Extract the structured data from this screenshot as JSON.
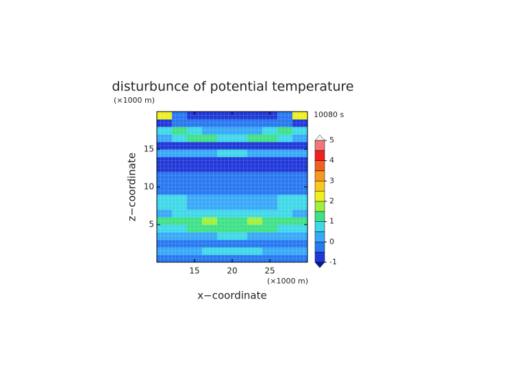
{
  "chart_data": {
    "type": "heatmap",
    "title": "disturbunce of potential temperature",
    "y_unit": "(×1000 m)",
    "x_unit": "(×1000 m)",
    "annotation": "10080 s",
    "x_label": "x−coordinate",
    "y_label": "z−coordinate",
    "xlim": [
      10,
      30
    ],
    "ylim": [
      0,
      20
    ],
    "xticks": [
      15,
      20,
      25
    ],
    "yticks": [
      5,
      10,
      15
    ],
    "x": [
      11,
      13,
      15,
      17,
      19,
      21,
      23,
      25,
      27,
      29
    ],
    "y": [
      0.5,
      1.5,
      2.5,
      3.5,
      4.5,
      5.5,
      6.5,
      7.5,
      8.5,
      9.5,
      10.5,
      11.5,
      12.5,
      13.5,
      14.5,
      15.5,
      16.5,
      17.5,
      18.5,
      19.5
    ],
    "z": [
      [
        -0.3,
        -0.3,
        -0.3,
        -0.3,
        -0.3,
        -0.3,
        -0.3,
        -0.3,
        -0.3,
        -0.3
      ],
      [
        0.3,
        0.3,
        0.4,
        0.5,
        0.7,
        0.7,
        0.5,
        0.4,
        0.3,
        0.3
      ],
      [
        -0.2,
        -0.2,
        -0.2,
        -0.2,
        -0.2,
        -0.2,
        -0.2,
        -0.2,
        -0.2,
        -0.2
      ],
      [
        0.2,
        0.2,
        0.2,
        0.4,
        0.7,
        0.7,
        0.4,
        0.2,
        0.2,
        0.2
      ],
      [
        0.8,
        0.9,
        1.0,
        1.1,
        1.0,
        1.0,
        1.1,
        1.0,
        0.9,
        0.8
      ],
      [
        1.2,
        1.3,
        1.4,
        1.6,
        1.2,
        1.2,
        1.6,
        1.4,
        1.3,
        1.2
      ],
      [
        0.4,
        0.6,
        0.8,
        0.9,
        0.9,
        0.9,
        0.9,
        0.8,
        0.6,
        0.4
      ],
      [
        0.6,
        0.6,
        0.3,
        0.1,
        0,
        0,
        0.1,
        0.3,
        0.6,
        0.6
      ],
      [
        0.7,
        0.8,
        0.4,
        0.2,
        0.2,
        0.2,
        0.2,
        0.4,
        0.8,
        0.7
      ],
      [
        -0.2,
        -0.2,
        -0.2,
        -0.2,
        -0.2,
        -0.2,
        -0.2,
        -0.2,
        -0.2,
        -0.2
      ],
      [
        -0.3,
        -0.3,
        -0.3,
        -0.3,
        -0.4,
        -0.4,
        -0.3,
        -0.3,
        -0.3,
        -0.3
      ],
      [
        -0.4,
        -0.4,
        -0.4,
        -0.4,
        -0.4,
        -0.4,
        -0.4,
        -0.4,
        -0.4,
        -0.4
      ],
      [
        -0.6,
        -0.6,
        -0.6,
        -0.6,
        -0.7,
        -0.7,
        -0.6,
        -0.6,
        -0.6,
        -0.6
      ],
      [
        -0.7,
        -0.6,
        -0.8,
        -0.9,
        -0.9,
        -0.9,
        -0.9,
        -0.8,
        -0.6,
        -0.7
      ],
      [
        0.2,
        0.2,
        0.3,
        0.4,
        0.6,
        0.6,
        0.4,
        0.3,
        0.2,
        0.2
      ],
      [
        -0.9,
        -0.9,
        -0.9,
        -0.9,
        -0.9,
        -0.9,
        -0.9,
        -0.9,
        -0.9,
        -0.9
      ],
      [
        0.3,
        0.6,
        1.0,
        1.2,
        0.8,
        0.8,
        1.2,
        1.0,
        0.6,
        0.3
      ],
      [
        0.8,
        1.4,
        0.6,
        0.2,
        0.1,
        0.1,
        0.2,
        0.6,
        1.4,
        0.8
      ],
      [
        -0.6,
        -0.5,
        -0.4,
        -0.4,
        -0.4,
        -0.4,
        -0.4,
        -0.4,
        -0.5,
        -0.6
      ],
      [
        2.0,
        -0.3,
        -0.7,
        -0.9,
        -0.9,
        -0.9,
        -0.9,
        -0.7,
        -0.3,
        2.0
      ]
    ],
    "levels": [
      -1,
      -0.5,
      0,
      0.5,
      1,
      1.5,
      2,
      2.5,
      3,
      3.5,
      4,
      4.5,
      5
    ],
    "colors": [
      "#2038d8",
      "#2878f0",
      "#38a8f8",
      "#40d8e8",
      "#40e088",
      "#a0f040",
      "#f0f020",
      "#f8c820",
      "#f89820",
      "#f06020",
      "#f02020",
      "#f07878",
      "#f8b0b0"
    ],
    "under_color": "#101890",
    "over_color": "#f4f4f4",
    "colorbar_ticks": [
      -1,
      0,
      1,
      2,
      3,
      4,
      5
    ]
  }
}
